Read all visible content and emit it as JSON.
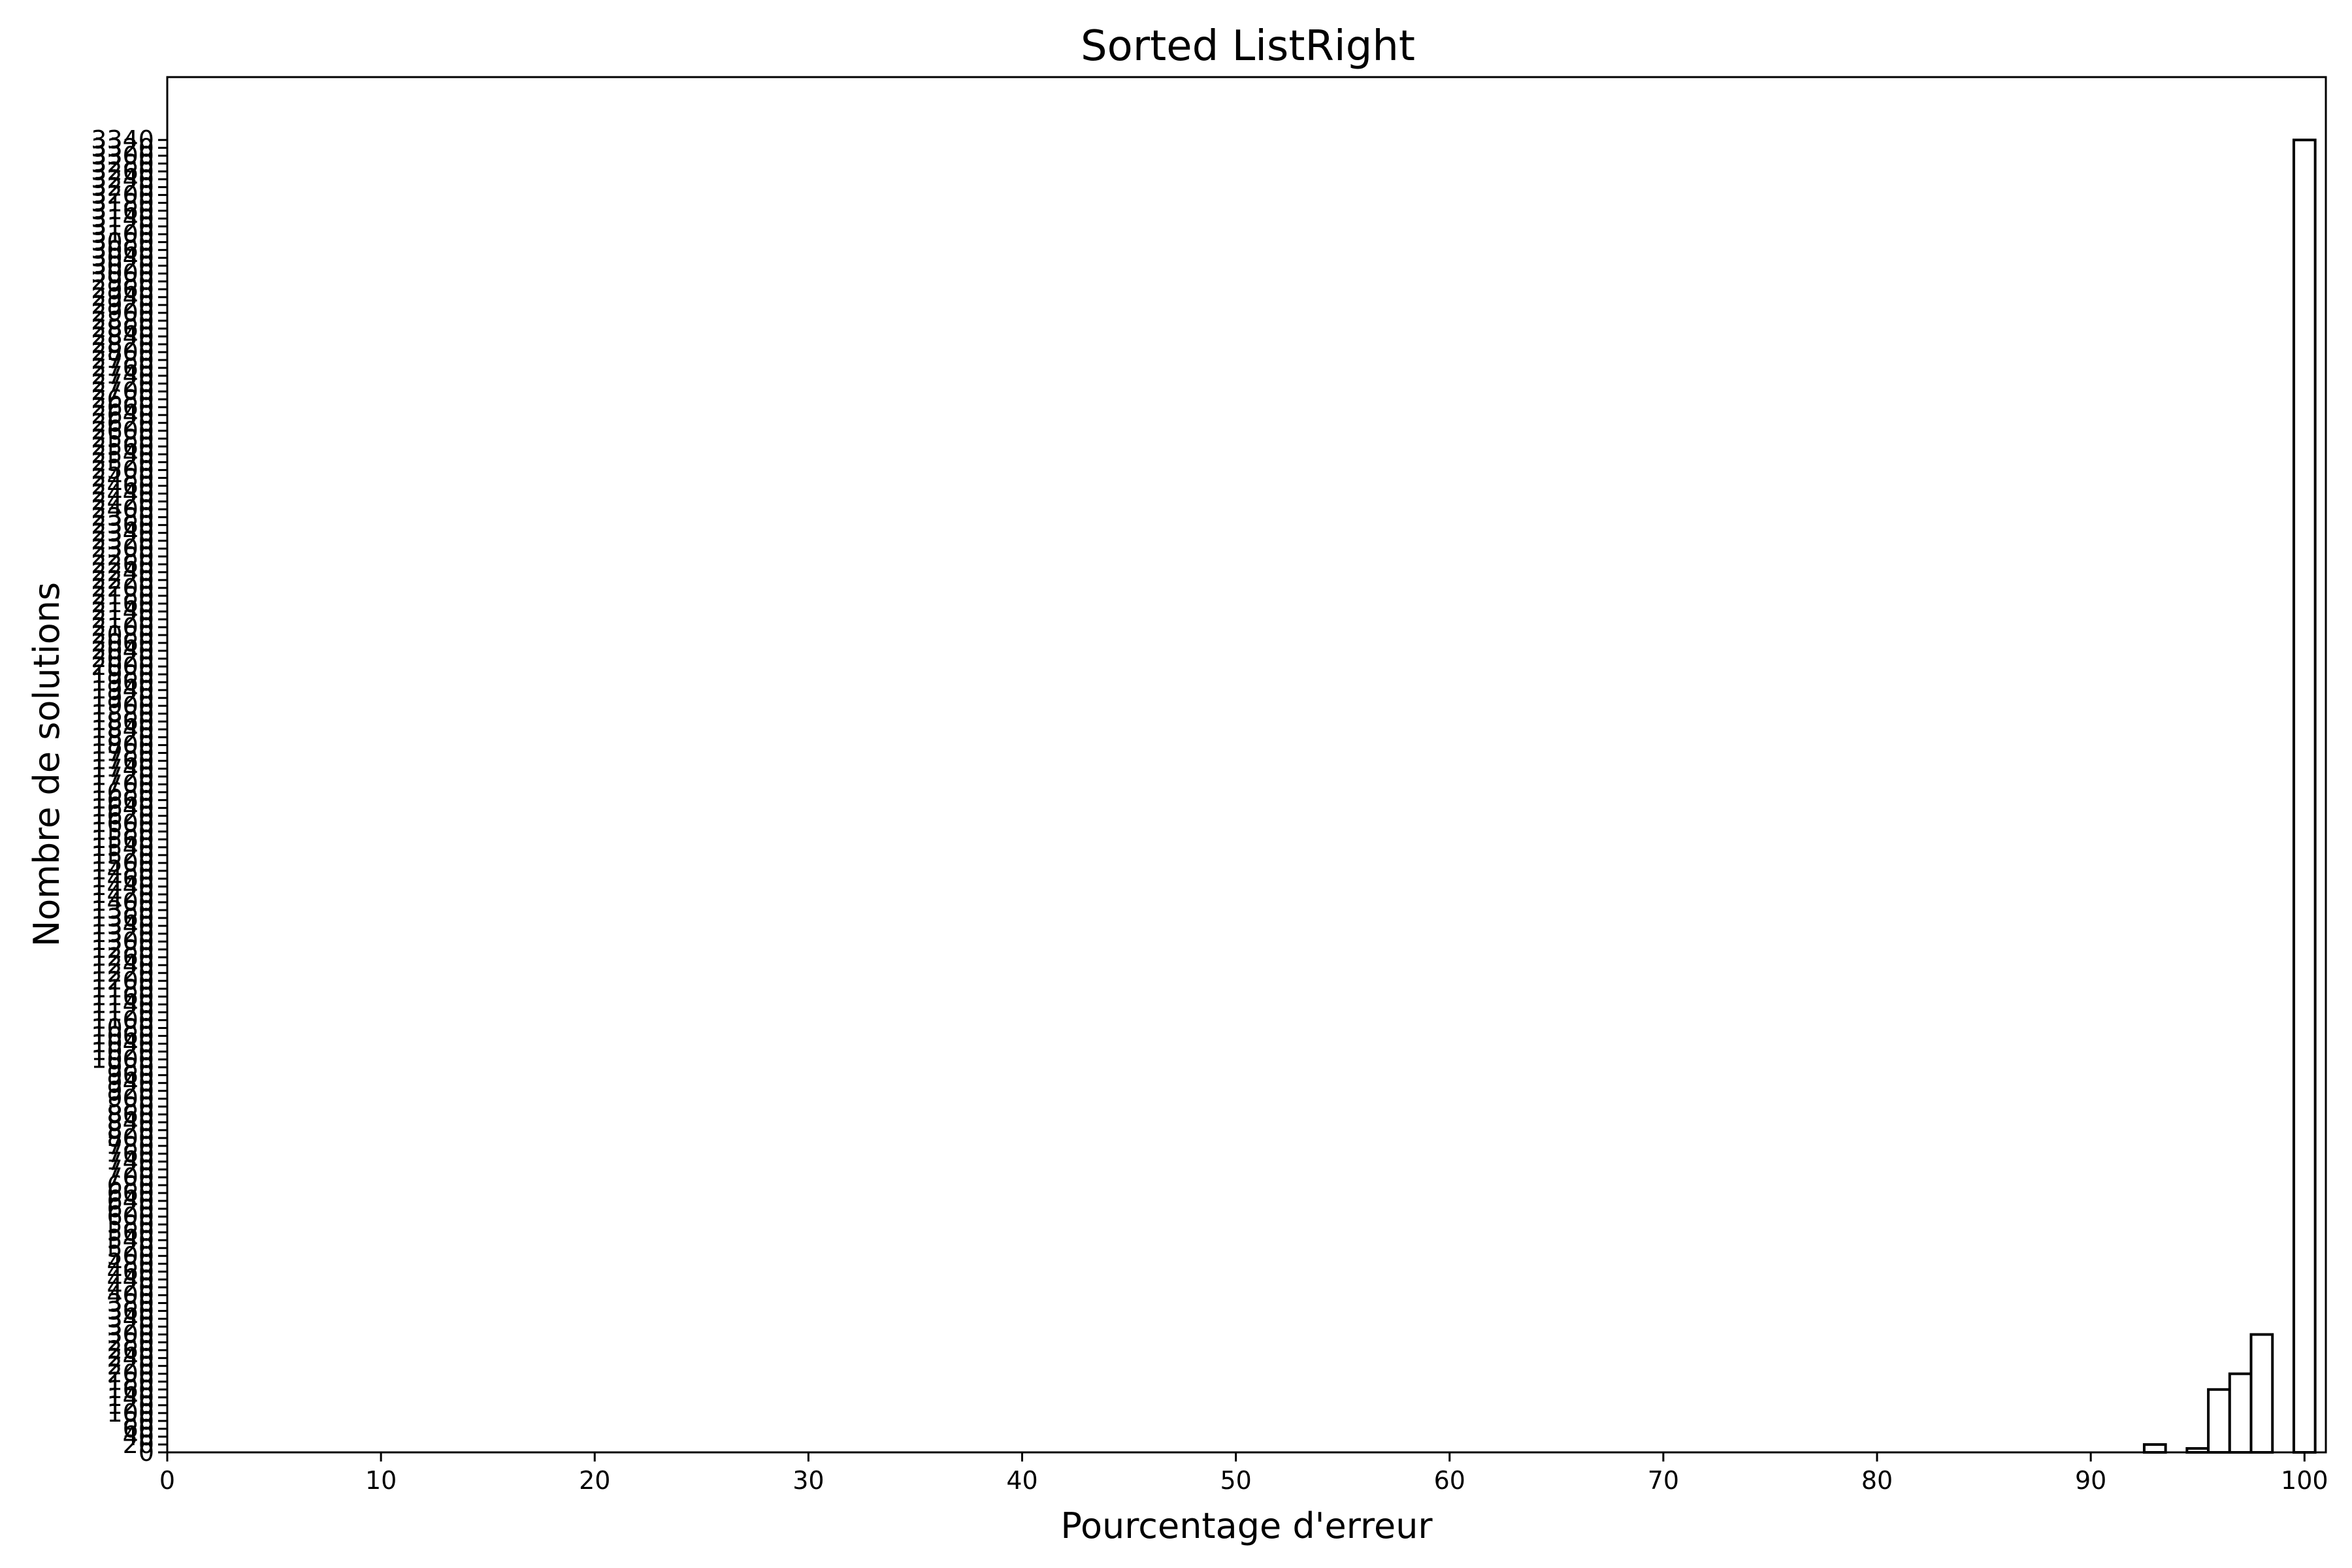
{
  "chart_data": {
    "type": "bar",
    "title": "Sorted ListRight",
    "xlabel": "Pourcentage d'erreur",
    "ylabel": "Nombre de solutions",
    "xlim": [
      0,
      101
    ],
    "ylim": [
      0,
      3500
    ],
    "xticks": [
      0,
      10,
      20,
      30,
      40,
      50,
      60,
      70,
      80,
      90,
      100
    ],
    "yticks": [
      0,
      20,
      40,
      60,
      80,
      100,
      120,
      140,
      160,
      180,
      200,
      220,
      240,
      260,
      280,
      300,
      320,
      340,
      360,
      380,
      400,
      420,
      440,
      460,
      480,
      500,
      520,
      540,
      560,
      580,
      600,
      620,
      640,
      660,
      680,
      700,
      720,
      740,
      760,
      780,
      800,
      820,
      840,
      860,
      880,
      900,
      920,
      940,
      960,
      980,
      1000,
      1020,
      1040,
      1060,
      1080,
      1100,
      1120,
      1140,
      1160,
      1180,
      1200,
      1220,
      1240,
      1260,
      1280,
      1300,
      1320,
      1340,
      1360,
      1380,
      1400,
      1420,
      1440,
      1460,
      1480,
      1500,
      1520,
      1540,
      1560,
      1580,
      1600,
      1620,
      1640,
      1660,
      1680,
      1700,
      1720,
      1740,
      1760,
      1780,
      1800,
      1820,
      1840,
      1860,
      1880,
      1900,
      1920,
      1940,
      1960,
      1980,
      2000,
      2020,
      2040,
      2060,
      2080,
      2100,
      2120,
      2140,
      2160,
      2180,
      2200,
      2220,
      2240,
      2260,
      2280,
      2300,
      2320,
      2340,
      2360,
      2380,
      2400,
      2420,
      2440,
      2460,
      2480,
      2500,
      2520,
      2540,
      2560,
      2580,
      2600,
      2620,
      2640,
      2660,
      2680,
      2700,
      2720,
      2740,
      2760,
      2780,
      2800,
      2820,
      2840,
      2860,
      2880,
      2900,
      2920,
      2940,
      2960,
      2980,
      3000,
      3020,
      3040,
      3060,
      3080,
      3100,
      3120,
      3140,
      3160,
      3180,
      3200,
      3220,
      3240,
      3260,
      3280,
      3300,
      3320,
      3340
    ],
    "bar_width": 1,
    "x": [
      93,
      95,
      96,
      97,
      98,
      100
    ],
    "values": [
      20,
      10,
      160,
      200,
      300,
      3340
    ],
    "grid": false
  }
}
